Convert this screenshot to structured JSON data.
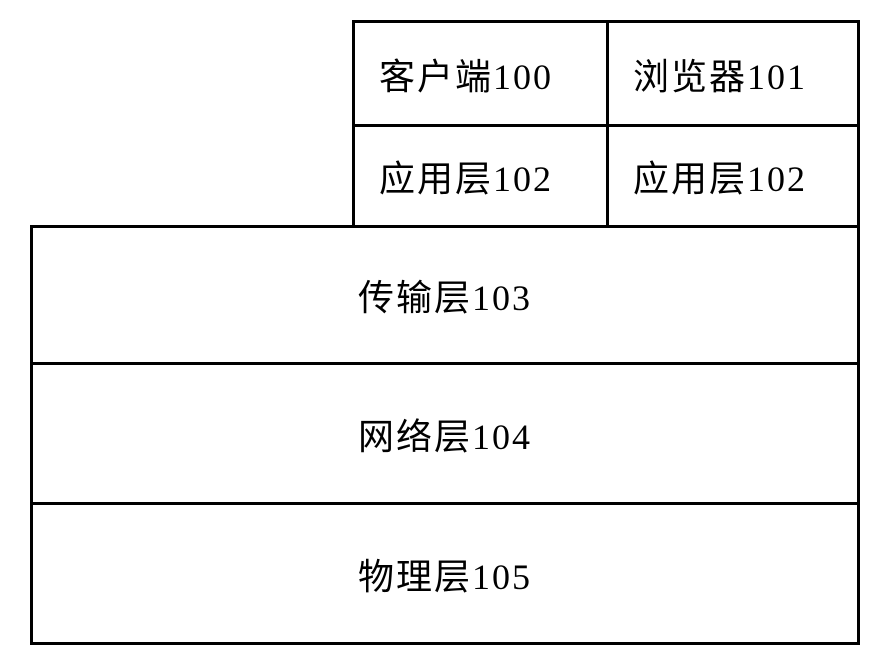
{
  "diagram": {
    "type": "layered-architecture",
    "border_color": "#000000",
    "border_width": 3,
    "background_color": "#ffffff",
    "text_color": "#000000",
    "font_size": 36,
    "font_family": "SimSun",
    "top_row": {
      "cells": [
        {
          "label": "客户端100",
          "id": "client"
        },
        {
          "label": "浏览器101",
          "id": "browser"
        }
      ]
    },
    "second_row": {
      "cells": [
        {
          "label": "应用层102",
          "id": "app-layer-left"
        },
        {
          "label": "应用层102",
          "id": "app-layer-right"
        }
      ]
    },
    "layers": [
      {
        "label": "传输层103",
        "id": "transport-layer"
      },
      {
        "label": "网络层104",
        "id": "network-layer"
      },
      {
        "label": "物理层105",
        "id": "physical-layer"
      }
    ],
    "dimensions": {
      "total_width": 830,
      "top_cell_width": 254,
      "top_cell_height": 104,
      "full_row_height": 140
    }
  }
}
